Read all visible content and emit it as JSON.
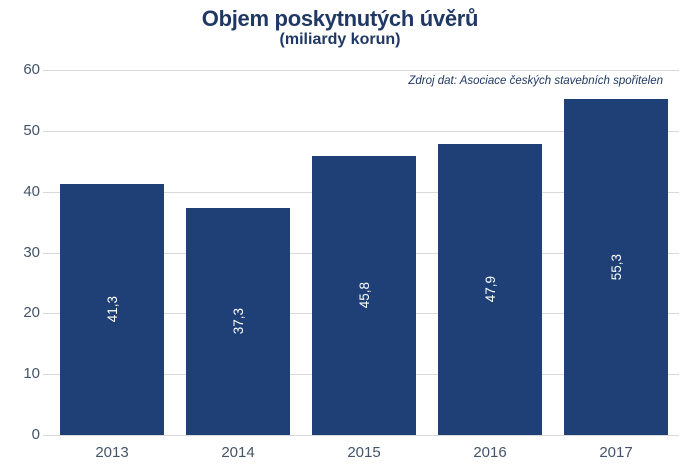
{
  "page": {
    "title": "Objem poskytnutých úvěrů",
    "subtitle": "(miliardy korun)",
    "source_note": "Zdroj dat: Asociace českých stavebních spořitelen"
  },
  "colors": {
    "background": "#FFFFFF",
    "bar": "#1F4076",
    "title": "#1F3864",
    "axis_label": "#44546A",
    "gridline": "#D9D9D9",
    "bar_label": "#FFFFFF"
  },
  "chart_data": {
    "type": "bar",
    "title": "Objem poskytnutých úvěrů",
    "subtitle": "(miliardy korun)",
    "annotation": "Zdroj dat: Asociace českých stavebních spořitelen",
    "categories": [
      "2013",
      "2014",
      "2015",
      "2016",
      "2017"
    ],
    "values": [
      41.3,
      37.3,
      45.8,
      47.9,
      55.3
    ],
    "value_labels": [
      "41,3",
      "37,3",
      "45,8",
      "47,9",
      "55,3"
    ],
    "xlabel": "",
    "ylabel": "",
    "ylim": [
      0,
      60
    ],
    "yticks": [
      0,
      10,
      20,
      30,
      40,
      50,
      60
    ],
    "grid": true,
    "legend": false,
    "value_label_rotation": -90,
    "value_label_position": "center",
    "decimal_separator": ","
  }
}
